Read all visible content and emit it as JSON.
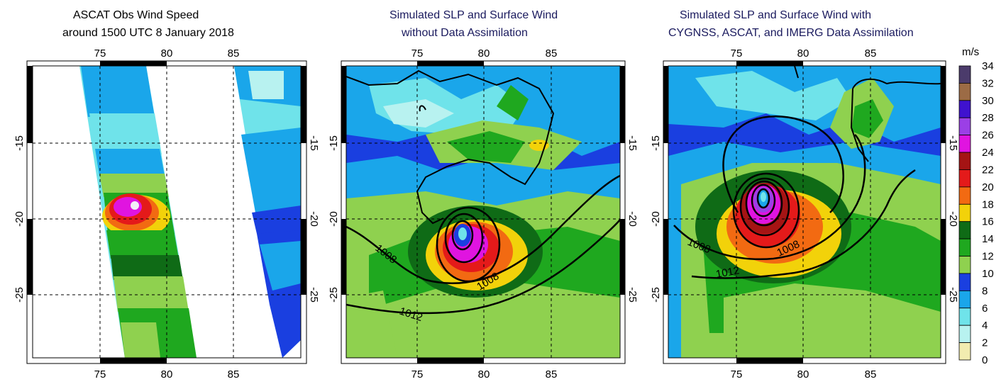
{
  "panels": [
    {
      "id": "ascat",
      "title_line1": "ASCAT Obs Wind Speed",
      "title_line2": "around 1500 UTC 8 January 2018",
      "contour_labels": []
    },
    {
      "id": "no-da",
      "title_line1": "Simulated SLP and Surface Wind",
      "title_line2": "without Data Assimilation",
      "contour_labels": [
        "1008",
        "1008",
        "1012"
      ]
    },
    {
      "id": "with-da",
      "title_line1": "Simulated SLP and Surface Wind with",
      "title_line2": "CYGNSS, ASCAT, and IMERG Data Assimilation",
      "contour_labels": [
        "1008",
        "1008",
        "1012"
      ]
    }
  ],
  "axes": {
    "lon_ticks": [
      "75",
      "80",
      "85"
    ],
    "lat_ticks": [
      "-15",
      "-20",
      "-25"
    ]
  },
  "colorbar": {
    "unit": "m/s",
    "levels": [
      "34",
      "32",
      "30",
      "28",
      "26",
      "24",
      "22",
      "20",
      "18",
      "16",
      "14",
      "12",
      "10",
      "8",
      "6",
      "4",
      "2",
      "0"
    ],
    "colors": [
      "#4b3b6b",
      "#9c6b45",
      "#3f12cf",
      "#9b3fe6",
      "#e014e0",
      "#a51414",
      "#e41a1a",
      "#f26a12",
      "#f2d20a",
      "#0f6b16",
      "#1fa81f",
      "#8fd14f",
      "#1a3fe0",
      "#1aa6ea",
      "#6fe3ea",
      "#b8f2f0",
      "#f2ecb0"
    ]
  },
  "map_colors": {
    "ocean_light": "#6fe3ea",
    "ocean_mid": "#1aa6ea",
    "ocean_blue": "#1a3fe0",
    "light_green": "#8fd14f",
    "green": "#1fa81f",
    "dark_green": "#0f6b16",
    "yellow": "#f2d20a",
    "orange": "#f26a12",
    "red": "#e41a1a",
    "dark_red": "#a51414",
    "magenta": "#e014e0",
    "purple": "#9b3fe6",
    "pale": "#b8f2f0"
  }
}
